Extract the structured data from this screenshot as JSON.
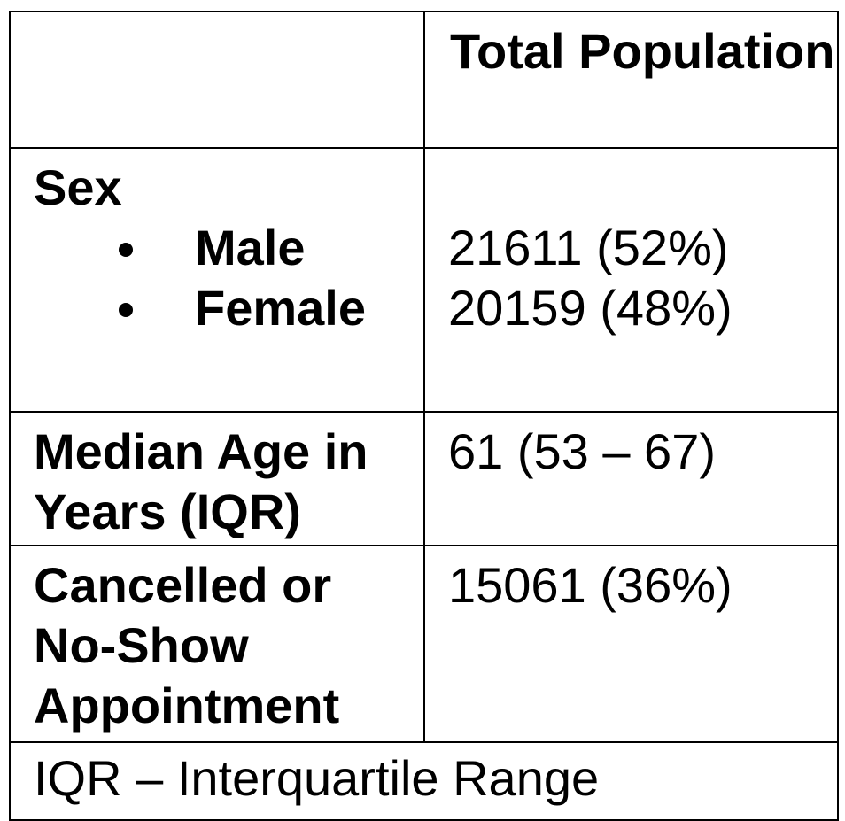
{
  "table": {
    "header": {
      "first_col": "",
      "total_population": "Total Population"
    },
    "rows": [
      {
        "label": "Sex",
        "items": [
          {
            "label": "Male",
            "value": "21611 (52%)"
          },
          {
            "label": "Female",
            "value": "20159 (48%)"
          }
        ]
      },
      {
        "label": "Median Age in Years (IQR)",
        "value": "61 (53 – 67)"
      },
      {
        "label": "Cancelled or No-Show Appointment",
        "value": "15061 (36%)"
      }
    ],
    "footnote": "IQR – Interquartile Range"
  }
}
